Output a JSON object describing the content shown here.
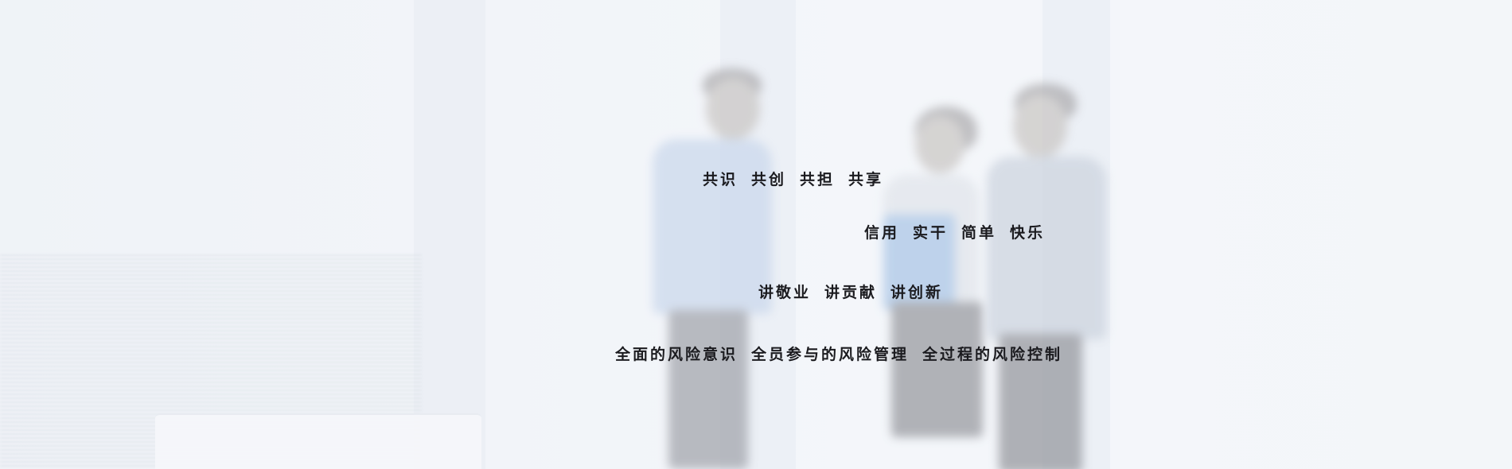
{
  "mottos": [
    [
      "共识",
      "共创",
      "共担",
      "共享"
    ],
    [
      "信用",
      "实干",
      "简单",
      "快乐"
    ],
    [
      "讲敬业",
      "讲贡献",
      "讲创新"
    ],
    [
      "全面的风险意识",
      "全员参与的风险管理",
      "全过程的风险控制"
    ]
  ]
}
